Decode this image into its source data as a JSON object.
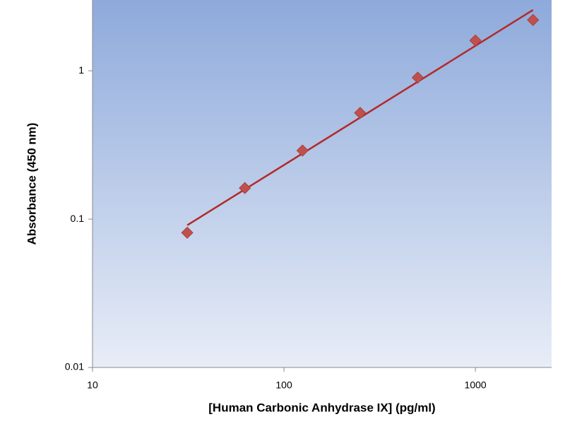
{
  "chart_data": {
    "type": "scatter",
    "x_label": "[Human Carbonic Anhydrase IX] (pg/ml)",
    "y_label": "Absorbance (450 nm)",
    "x": [
      31.25,
      62.5,
      125,
      250,
      500,
      1000,
      2000
    ],
    "series": [
      {
        "color": "#c0504d",
        "values": [
          0.081,
          0.162,
          0.29,
          0.52,
          0.9,
          1.6,
          2.2
        ]
      }
    ],
    "fit": {
      "x": [
        31.25,
        2000
      ],
      "values": [
        0.091,
        2.57
      ],
      "color": "#b22a2a"
    },
    "xlim": [
      10,
      2500
    ],
    "ylim": [
      0.01,
      3
    ],
    "xticks": [
      10,
      100,
      1000
    ],
    "yticks": [
      0.01,
      0.1,
      1
    ],
    "xscale": "log",
    "yscale": "log",
    "grid": false
  }
}
